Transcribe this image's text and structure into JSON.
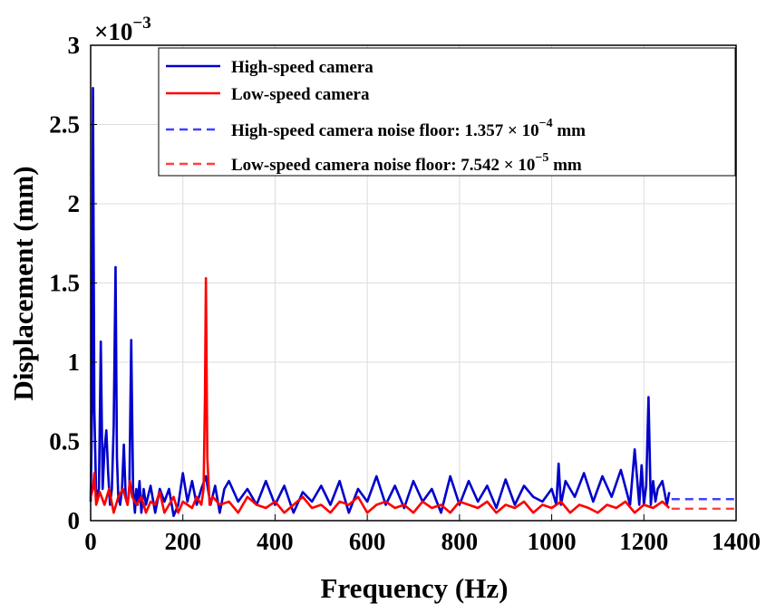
{
  "chart_data": {
    "type": "line",
    "title": "",
    "xlabel": "Frequency (Hz)",
    "ylabel": "Displacement (mm)",
    "xlim": [
      0,
      1400
    ],
    "ylim": [
      0,
      0.003
    ],
    "y_exponent_label": "×10",
    "y_exponent_power": "−3",
    "x_ticks": [
      0,
      200,
      400,
      600,
      800,
      1000,
      1200,
      1400
    ],
    "y_ticks": [
      0,
      0.0005,
      0.001,
      0.0015,
      0.002,
      0.0025,
      0.003
    ],
    "y_tick_labels": [
      "0",
      "0.5",
      "1",
      "1.5",
      "2",
      "2.5",
      "3"
    ],
    "grid": true,
    "legend_position": "top-right",
    "colors": {
      "high": "#0000cc",
      "low": "#ff0000",
      "high_noise": "#4040ff",
      "low_noise": "#ff4040"
    },
    "series": [
      {
        "name": "High-speed camera",
        "style": "solid",
        "color": "#0000cc",
        "x": [
          0,
          3,
          5,
          8,
          12,
          18,
          22,
          26,
          30,
          34,
          38,
          42,
          46,
          50,
          54,
          57,
          60,
          64,
          68,
          72,
          76,
          80,
          84,
          88,
          92,
          96,
          99,
          102,
          106,
          110,
          115,
          120,
          130,
          140,
          150,
          160,
          170,
          180,
          190,
          200,
          210,
          220,
          230,
          240,
          250,
          260,
          270,
          280,
          290,
          300,
          320,
          340,
          360,
          380,
          400,
          420,
          440,
          460,
          480,
          500,
          520,
          540,
          560,
          580,
          600,
          620,
          640,
          660,
          680,
          700,
          720,
          740,
          760,
          780,
          800,
          820,
          840,
          860,
          880,
          900,
          920,
          940,
          960,
          980,
          1000,
          1010,
          1015,
          1020,
          1030,
          1050,
          1070,
          1090,
          1110,
          1130,
          1150,
          1170,
          1180,
          1190,
          1195,
          1200,
          1205,
          1210,
          1215,
          1220,
          1225,
          1230,
          1240,
          1250,
          1255
        ],
        "y": [
          0.00012,
          0.0007,
          0.00273,
          0.0007,
          0.00015,
          0.0002,
          0.00113,
          0.0002,
          0.00045,
          0.00057,
          0.0003,
          0.0001,
          0.0002,
          0.0006,
          0.0016,
          0.0004,
          0.00015,
          0.0001,
          0.0002,
          0.00048,
          0.00015,
          0.0001,
          0.0002,
          0.00114,
          0.0002,
          5e-05,
          0.0002,
          0.0001,
          0.00025,
          5e-05,
          0.0002,
          0.0001,
          0.00022,
          5e-05,
          0.0002,
          0.00012,
          0.0002,
          3e-05,
          0.0001,
          0.0003,
          0.00012,
          0.00025,
          0.0001,
          0.0002,
          0.00028,
          0.0001,
          0.00022,
          5e-05,
          0.0002,
          0.00025,
          0.00012,
          0.0002,
          0.0001,
          0.00025,
          0.0001,
          0.00022,
          5e-05,
          0.00018,
          0.00012,
          0.00022,
          0.0001,
          0.00025,
          5e-05,
          0.0002,
          0.00012,
          0.00028,
          0.0001,
          0.00022,
          8e-05,
          0.00025,
          0.00012,
          0.0002,
          5e-05,
          0.00028,
          0.0001,
          0.00025,
          0.00012,
          0.00022,
          8e-05,
          0.00026,
          0.0001,
          0.00022,
          0.00015,
          0.00012,
          0.0002,
          0.0001,
          0.00036,
          0.0001,
          0.00025,
          0.00015,
          0.0003,
          0.00012,
          0.00028,
          0.00015,
          0.00032,
          0.0001,
          0.00045,
          0.0001,
          0.00035,
          0.0001,
          0.00022,
          0.00078,
          0.0001,
          0.00025,
          0.00012,
          0.0002,
          0.00025,
          0.0001,
          0.00018
        ]
      },
      {
        "name": "Low-speed camera",
        "style": "solid",
        "color": "#ff0000",
        "x": [
          0,
          5,
          8,
          12,
          20,
          30,
          40,
          50,
          60,
          70,
          80,
          85,
          90,
          100,
          110,
          120,
          130,
          140,
          150,
          160,
          170,
          180,
          190,
          200,
          210,
          220,
          230,
          240,
          245,
          248,
          250,
          253,
          258,
          265,
          280,
          300,
          320,
          340,
          360,
          380,
          400,
          420,
          440,
          460,
          480,
          500,
          520,
          540,
          560,
          580,
          600,
          620,
          640,
          660,
          680,
          700,
          720,
          740,
          760,
          780,
          800,
          820,
          840,
          860,
          880,
          900,
          920,
          940,
          960,
          980,
          1000,
          1020,
          1040,
          1060,
          1080,
          1100,
          1120,
          1140,
          1160,
          1180,
          1200,
          1220,
          1240,
          1255
        ],
        "y": [
          0.00015,
          0.0002,
          0.0003,
          0.0001,
          0.00018,
          0.0001,
          0.0002,
          5e-05,
          0.00015,
          0.0002,
          0.0001,
          0.00025,
          0.00015,
          0.0001,
          0.00015,
          5e-05,
          0.00012,
          0.0001,
          0.00018,
          5e-05,
          0.0001,
          0.00015,
          5e-05,
          0.00012,
          0.0001,
          8e-05,
          0.00015,
          0.0001,
          0.0002,
          0.0008,
          0.00153,
          0.0004,
          0.0001,
          0.00015,
          0.0001,
          0.00012,
          5e-05,
          0.00015,
          0.0001,
          8e-05,
          0.00012,
          5e-05,
          0.0001,
          0.00015,
          8e-05,
          0.0001,
          5e-05,
          0.00012,
          0.0001,
          0.00015,
          5e-05,
          0.0001,
          0.00012,
          8e-05,
          0.0001,
          5e-05,
          0.00012,
          8e-05,
          0.0001,
          5e-05,
          0.00012,
          0.0001,
          8e-05,
          0.00012,
          5e-05,
          0.0001,
          8e-05,
          0.00012,
          5e-05,
          0.0001,
          8e-05,
          0.00012,
          5e-05,
          0.0001,
          8e-05,
          5e-05,
          0.0001,
          8e-05,
          0.00012,
          5e-05,
          0.0001,
          8e-05,
          0.00012,
          8e-05
        ]
      }
    ],
    "noise_floors": [
      {
        "name_prefix": "High-speed camera noise floor: 1.357 × 10",
        "power": "−4",
        "unit": "mm",
        "value": 0.0001357,
        "x_range": [
          1260,
          1400
        ],
        "color": "#4040ff",
        "style": "dashed"
      },
      {
        "name_prefix": "Low-speed camera noise floor: 7.542 × 10",
        "power": "−5",
        "unit": "mm",
        "value": 7.542e-05,
        "x_range": [
          1260,
          1400
        ],
        "color": "#ff4040",
        "style": "dashed"
      }
    ]
  }
}
